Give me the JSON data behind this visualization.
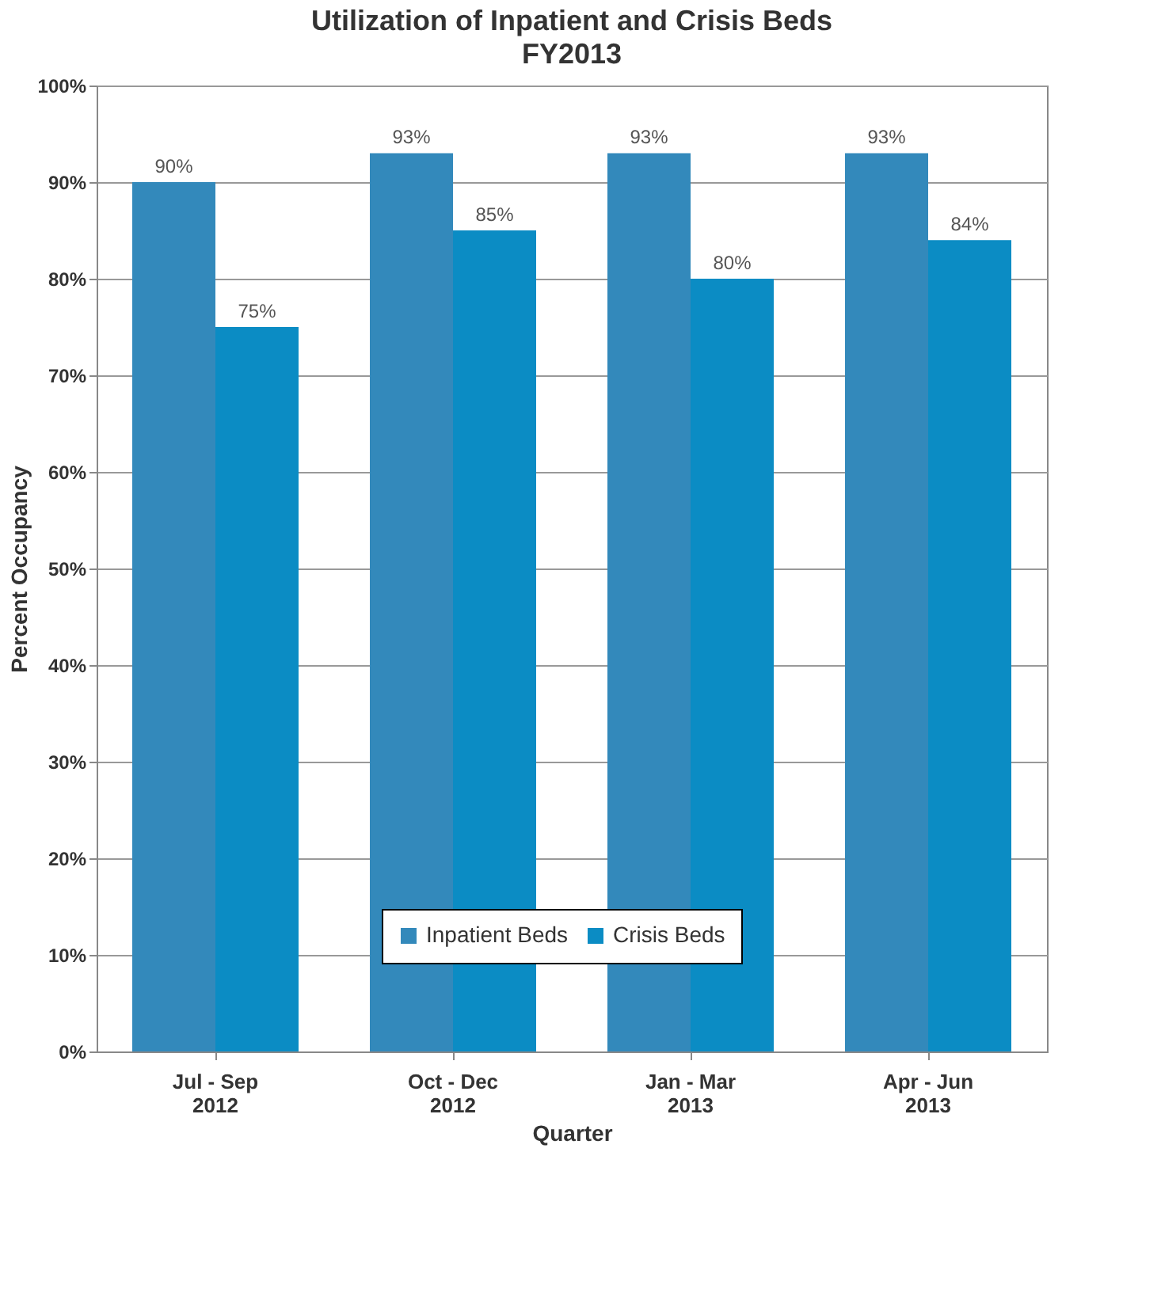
{
  "chart_data": {
    "type": "bar",
    "title": "Utilization of Inpatient and Crisis Beds",
    "subtitle": "FY2013",
    "xlabel": "Quarter",
    "ylabel": "Percent Occupancy",
    "categories": [
      "Jul - Sep\n2012",
      "Oct - Dec\n2012",
      "Jan - Mar\n2013",
      "Apr - Jun\n2013"
    ],
    "series": [
      {
        "name": "Inpatient Beds",
        "color": "#3389bb",
        "values": [
          90,
          93,
          93,
          93
        ],
        "value_labels": [
          "90%",
          "93%",
          "93%",
          "93%"
        ]
      },
      {
        "name": "Crisis Beds",
        "color": "#0b8cc4",
        "values": [
          75,
          85,
          80,
          84
        ],
        "value_labels": [
          "75%",
          "85%",
          "80%",
          "84%"
        ]
      }
    ],
    "ylim": [
      0,
      100
    ],
    "yticks": [
      {
        "value": 0,
        "label": "0%"
      },
      {
        "value": 10,
        "label": "10%"
      },
      {
        "value": 20,
        "label": "20%"
      },
      {
        "value": 30,
        "label": "30%"
      },
      {
        "value": 40,
        "label": "40%"
      },
      {
        "value": 50,
        "label": "50%"
      },
      {
        "value": 60,
        "label": "60%"
      },
      {
        "value": 70,
        "label": "70%"
      },
      {
        "value": 80,
        "label": "80%"
      },
      {
        "value": 90,
        "label": "90%"
      },
      {
        "value": 100,
        "label": "100%"
      }
    ],
    "grid": "y",
    "legend": "bottom"
  }
}
